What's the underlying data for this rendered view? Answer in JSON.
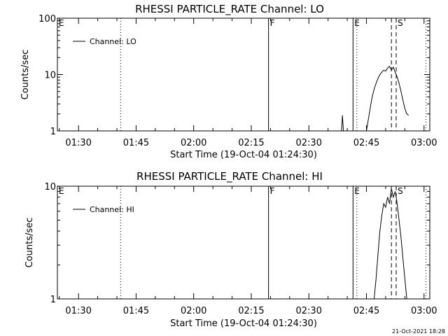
{
  "footer": {
    "stamp": "21-Oct-2021 18:28"
  },
  "chart_data": [
    {
      "type": "line",
      "title": "RHESSI PARTICLE_RATE Channel: LO",
      "xlabel": "Start Time (19-Oct-04 01:24:30)",
      "ylabel": "Counts/sec",
      "yscale": "log",
      "xlim": [
        "01:24:30",
        "03:01:30"
      ],
      "ylim": [
        1,
        100
      ],
      "yticks": [
        {
          "value": 1,
          "label": "1"
        },
        {
          "value": 10,
          "label": "10"
        },
        {
          "value": 100,
          "label": "100"
        }
      ],
      "xticks": [
        {
          "value": "01:30",
          "label": "01:30"
        },
        {
          "value": "01:45",
          "label": "01:45"
        },
        {
          "value": "02:00",
          "label": "02:00"
        },
        {
          "value": "02:15",
          "label": "02:15"
        },
        {
          "value": "02:30",
          "label": "02:30"
        },
        {
          "value": "02:45",
          "label": "02:45"
        },
        {
          "value": "03:00",
          "label": "03:00"
        }
      ],
      "legend": {
        "placement": "top-left",
        "entries": [
          "Channel: LO"
        ]
      },
      "markers": [
        {
          "time": "01:24:30",
          "style": "none",
          "label": "E"
        },
        {
          "time": "01:41:00",
          "style": "dotted",
          "label": ""
        },
        {
          "time": "02:19:30",
          "style": "solid",
          "label": "F"
        },
        {
          "time": "02:41:30",
          "style": "solid",
          "label": "E"
        },
        {
          "time": "02:42:30",
          "style": "dotted",
          "label": ""
        },
        {
          "time": "02:51:30",
          "style": "dashed",
          "label": ""
        },
        {
          "time": "02:52:45",
          "style": "dashed",
          "label": "S"
        },
        {
          "time": "03:00:30",
          "style": "dotted",
          "label": ""
        }
      ],
      "series": [
        {
          "points": [
            [
              "02:38:30",
              1.0
            ],
            [
              "02:38:45",
              1.9
            ],
            [
              "02:39:00",
              1.0
            ],
            [
              "02:45:00",
              1.0
            ],
            [
              "02:45:30",
              1.6
            ],
            [
              "02:46:00",
              2.6
            ],
            [
              "02:46:30",
              4.0
            ],
            [
              "02:47:00",
              5.5
            ],
            [
              "02:47:30",
              7.0
            ],
            [
              "02:48:00",
              8.5
            ],
            [
              "02:48:30",
              10.0
            ],
            [
              "02:49:00",
              11.0
            ],
            [
              "02:49:30",
              12.0
            ],
            [
              "02:50:00",
              11.5
            ],
            [
              "02:50:30",
              13.0
            ],
            [
              "02:51:00",
              14.0
            ],
            [
              "02:51:30",
              12.0
            ],
            [
              "02:52:00",
              13.5
            ],
            [
              "02:52:30",
              11.0
            ],
            [
              "02:53:00",
              9.0
            ],
            [
              "02:53:30",
              7.0
            ],
            [
              "02:54:00",
              5.0
            ],
            [
              "02:54:30",
              3.5
            ],
            [
              "02:55:00",
              2.5
            ],
            [
              "02:55:30",
              2.0
            ],
            [
              "02:56:00",
              1.9
            ]
          ]
        }
      ]
    },
    {
      "type": "line",
      "title": "RHESSI PARTICLE_RATE Channel: HI",
      "xlabel": "Start Time (19-Oct-04 01:24:30)",
      "ylabel": "Counts/sec",
      "yscale": "log",
      "xlim": [
        "01:24:30",
        "03:01:30"
      ],
      "ylim": [
        1,
        10
      ],
      "yticks": [
        {
          "value": 1,
          "label": "1"
        },
        {
          "value": 10,
          "label": "10"
        }
      ],
      "xticks": [
        {
          "value": "01:30",
          "label": "01:30"
        },
        {
          "value": "01:45",
          "label": "01:45"
        },
        {
          "value": "02:00",
          "label": "02:00"
        },
        {
          "value": "02:15",
          "label": "02:15"
        },
        {
          "value": "02:30",
          "label": "02:30"
        },
        {
          "value": "02:45",
          "label": "02:45"
        },
        {
          "value": "03:00",
          "label": "03:00"
        }
      ],
      "legend": {
        "placement": "top-left",
        "entries": [
          "Channel: HI"
        ]
      },
      "markers": [
        {
          "time": "01:24:30",
          "style": "none",
          "label": "E"
        },
        {
          "time": "01:41:00",
          "style": "dotted",
          "label": ""
        },
        {
          "time": "02:19:30",
          "style": "solid",
          "label": "F"
        },
        {
          "time": "02:41:30",
          "style": "solid",
          "label": "E"
        },
        {
          "time": "02:42:30",
          "style": "dotted",
          "label": ""
        },
        {
          "time": "02:51:30",
          "style": "dashed",
          "label": ""
        },
        {
          "time": "02:52:45",
          "style": "dashed",
          "label": "S"
        },
        {
          "time": "03:00:30",
          "style": "dotted",
          "label": ""
        }
      ],
      "series": [
        {
          "points": [
            [
              "02:47:00",
              1.0
            ],
            [
              "02:47:30",
              1.5
            ],
            [
              "02:48:00",
              2.5
            ],
            [
              "02:48:30",
              4.0
            ],
            [
              "02:49:00",
              5.5
            ],
            [
              "02:49:30",
              7.0
            ],
            [
              "02:50:00",
              6.5
            ],
            [
              "02:50:30",
              8.0
            ],
            [
              "02:51:00",
              7.0
            ],
            [
              "02:51:30",
              9.5
            ],
            [
              "02:52:00",
              8.0
            ],
            [
              "02:52:30",
              9.0
            ],
            [
              "02:53:00",
              7.0
            ],
            [
              "02:53:30",
              5.0
            ],
            [
              "02:54:00",
              3.5
            ],
            [
              "02:54:30",
              2.3
            ],
            [
              "02:55:00",
              1.5
            ],
            [
              "02:55:30",
              1.0
            ]
          ]
        }
      ]
    }
  ]
}
